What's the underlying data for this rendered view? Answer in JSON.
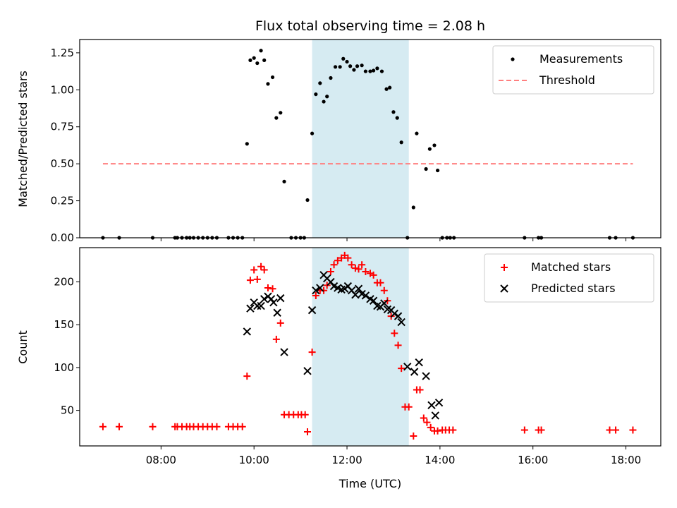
{
  "chart_data": {
    "title": "Flux total observing time = 2.08 h",
    "xlabel": "Time (UTC)",
    "x_unit": "hours UTC",
    "xlim": [
      6.25,
      18.75
    ],
    "x_ticks": [
      8,
      10,
      12,
      14,
      16,
      18
    ],
    "x_tick_labels": [
      "08:00",
      "10:00",
      "12:00",
      "14:00",
      "16:00",
      "18:00"
    ],
    "shaded_region": {
      "x_start": 11.25,
      "x_end": 13.33,
      "color": "#add8e6"
    },
    "panels": [
      {
        "type": "scatter",
        "ylabel": "Matched/Predicted stars",
        "ylim": [
          0,
          1.34
        ],
        "y_ticks": [
          0,
          0.25,
          0.5,
          0.75,
          1.0,
          1.25
        ],
        "y_tick_labels": [
          "0.00",
          "0.25",
          "0.50",
          "0.75",
          "1.00",
          "1.25"
        ],
        "legend": {
          "placement": "top-right"
        },
        "series": [
          {
            "name": "Measurements",
            "marker": "dot",
            "color": "#000000",
            "points": [
              [
                6.75,
                0
              ],
              [
                7.1,
                0
              ],
              [
                7.82,
                0
              ],
              [
                8.3,
                0
              ],
              [
                8.35,
                0
              ],
              [
                8.45,
                0
              ],
              [
                8.55,
                0
              ],
              [
                8.62,
                0
              ],
              [
                8.7,
                0
              ],
              [
                8.8,
                0
              ],
              [
                8.9,
                0
              ],
              [
                9.0,
                0
              ],
              [
                9.1,
                0
              ],
              [
                9.2,
                0
              ],
              [
                9.45,
                0
              ],
              [
                9.55,
                0
              ],
              [
                9.65,
                0
              ],
              [
                9.75,
                0
              ],
              [
                9.85,
                0.635
              ],
              [
                9.92,
                1.2
              ],
              [
                10.0,
                1.215
              ],
              [
                10.07,
                1.18
              ],
              [
                10.15,
                1.265
              ],
              [
                10.22,
                1.2
              ],
              [
                10.3,
                1.04
              ],
              [
                10.4,
                1.085
              ],
              [
                10.48,
                0.81
              ],
              [
                10.57,
                0.845
              ],
              [
                10.65,
                0.38
              ],
              [
                10.8,
                0
              ],
              [
                10.9,
                0
              ],
              [
                11.0,
                0
              ],
              [
                11.08,
                0
              ],
              [
                11.15,
                0.255
              ],
              [
                11.25,
                0.705
              ],
              [
                11.33,
                0.97
              ],
              [
                11.42,
                1.045
              ],
              [
                11.5,
                0.92
              ],
              [
                11.57,
                0.955
              ],
              [
                11.65,
                1.08
              ],
              [
                11.75,
                1.155
              ],
              [
                11.85,
                1.155
              ],
              [
                11.92,
                1.21
              ],
              [
                12.0,
                1.19
              ],
              [
                12.07,
                1.16
              ],
              [
                12.15,
                1.135
              ],
              [
                12.22,
                1.16
              ],
              [
                12.32,
                1.165
              ],
              [
                12.4,
                1.125
              ],
              [
                12.5,
                1.125
              ],
              [
                12.57,
                1.13
              ],
              [
                12.65,
                1.145
              ],
              [
                12.75,
                1.125
              ],
              [
                12.85,
                1.005
              ],
              [
                12.92,
                1.015
              ],
              [
                13.0,
                0.85
              ],
              [
                13.08,
                0.81
              ],
              [
                13.17,
                0.645
              ],
              [
                13.3,
                0
              ],
              [
                13.43,
                0.205
              ],
              [
                13.5,
                0.705
              ],
              [
                13.7,
                0.465
              ],
              [
                13.78,
                0.6
              ],
              [
                13.88,
                0.625
              ],
              [
                13.95,
                0.455
              ],
              [
                14.05,
                0
              ],
              [
                14.15,
                0
              ],
              [
                14.22,
                0
              ],
              [
                14.3,
                0
              ],
              [
                15.82,
                0
              ],
              [
                16.12,
                0
              ],
              [
                16.18,
                0
              ],
              [
                17.65,
                0
              ],
              [
                17.78,
                0
              ],
              [
                18.15,
                0
              ]
            ]
          },
          {
            "name": "Threshold",
            "marker": "dashed-line",
            "color": "#ff7f7f",
            "points": [
              [
                6.75,
                0.5
              ],
              [
                18.15,
                0.5
              ]
            ]
          }
        ]
      },
      {
        "type": "scatter",
        "ylabel": "Count",
        "ylim": [
          8.5,
          240
        ],
        "y_ticks": [
          50,
          100,
          150,
          200
        ],
        "y_tick_labels": [
          "50",
          "100",
          "150",
          "200"
        ],
        "legend": {
          "placement": "top-right"
        },
        "series": [
          {
            "name": "Matched stars",
            "marker": "plus",
            "color": "#ff0000",
            "points": [
              [
                6.75,
                31
              ],
              [
                7.1,
                31
              ],
              [
                7.82,
                31
              ],
              [
                8.3,
                31
              ],
              [
                8.35,
                31
              ],
              [
                8.45,
                31
              ],
              [
                8.55,
                31
              ],
              [
                8.62,
                31
              ],
              [
                8.7,
                31
              ],
              [
                8.8,
                31
              ],
              [
                8.9,
                31
              ],
              [
                9.0,
                31
              ],
              [
                9.1,
                31
              ],
              [
                9.2,
                31
              ],
              [
                9.45,
                31
              ],
              [
                9.55,
                31
              ],
              [
                9.65,
                31
              ],
              [
                9.75,
                31
              ],
              [
                9.85,
                90
              ],
              [
                9.92,
                202
              ],
              [
                10.0,
                214
              ],
              [
                10.07,
                203
              ],
              [
                10.15,
                218
              ],
              [
                10.22,
                214
              ],
              [
                10.3,
                193
              ],
              [
                10.4,
                192
              ],
              [
                10.48,
                133
              ],
              [
                10.57,
                152
              ],
              [
                10.65,
                45
              ],
              [
                10.75,
                45
              ],
              [
                10.85,
                45
              ],
              [
                10.95,
                45
              ],
              [
                11.02,
                45
              ],
              [
                11.1,
                45
              ],
              [
                11.15,
                25
              ],
              [
                11.25,
                118
              ],
              [
                11.33,
                184
              ],
              [
                11.42,
                190
              ],
              [
                11.5,
                190
              ],
              [
                11.57,
                196
              ],
              [
                11.65,
                212
              ],
              [
                11.72,
                220
              ],
              [
                11.8,
                225
              ],
              [
                11.88,
                228
              ],
              [
                11.95,
                231
              ],
              [
                12.02,
                228
              ],
              [
                12.1,
                220
              ],
              [
                12.18,
                216
              ],
              [
                12.25,
                215
              ],
              [
                12.32,
                220
              ],
              [
                12.4,
                212
              ],
              [
                12.5,
                210
              ],
              [
                12.57,
                208
              ],
              [
                12.65,
                199
              ],
              [
                12.72,
                199
              ],
              [
                12.8,
                190
              ],
              [
                12.87,
                178
              ],
              [
                12.95,
                160
              ],
              [
                13.02,
                140
              ],
              [
                13.1,
                126
              ],
              [
                13.17,
                99
              ],
              [
                13.25,
                54
              ],
              [
                13.33,
                54
              ],
              [
                13.43,
                20
              ],
              [
                13.5,
                74
              ],
              [
                13.57,
                74
              ],
              [
                13.65,
                41
              ],
              [
                13.72,
                36
              ],
              [
                13.8,
                30
              ],
              [
                13.88,
                26
              ],
              [
                13.95,
                26
              ],
              [
                14.05,
                27
              ],
              [
                14.12,
                27
              ],
              [
                14.2,
                27
              ],
              [
                14.28,
                27
              ],
              [
                15.82,
                27
              ],
              [
                16.12,
                27
              ],
              [
                16.18,
                27
              ],
              [
                17.65,
                27
              ],
              [
                17.78,
                27
              ],
              [
                18.15,
                27
              ]
            ]
          },
          {
            "name": "Predicted stars",
            "marker": "x",
            "color": "#000000",
            "points": [
              [
                9.85,
                142
              ],
              [
                9.92,
                169
              ],
              [
                10.0,
                176
              ],
              [
                10.07,
                172
              ],
              [
                10.15,
                172
              ],
              [
                10.22,
                180
              ],
              [
                10.3,
                183
              ],
              [
                10.37,
                180
              ],
              [
                10.42,
                176
              ],
              [
                10.5,
                164
              ],
              [
                10.57,
                181
              ],
              [
                10.65,
                118
              ],
              [
                11.15,
                96
              ],
              [
                11.25,
                167
              ],
              [
                11.33,
                190
              ],
              [
                11.42,
                193
              ],
              [
                11.5,
                208
              ],
              [
                11.57,
                204
              ],
              [
                11.65,
                200
              ],
              [
                11.72,
                195
              ],
              [
                11.8,
                193
              ],
              [
                11.88,
                191
              ],
              [
                11.95,
                192
              ],
              [
                12.02,
                195
              ],
              [
                12.1,
                190
              ],
              [
                12.18,
                185
              ],
              [
                12.25,
                192
              ],
              [
                12.32,
                186
              ],
              [
                12.4,
                184
              ],
              [
                12.5,
                180
              ],
              [
                12.57,
                178
              ],
              [
                12.65,
                172
              ],
              [
                12.72,
                171
              ],
              [
                12.8,
                175
              ],
              [
                12.87,
                168
              ],
              [
                12.95,
                167
              ],
              [
                13.02,
                163
              ],
              [
                13.1,
                160
              ],
              [
                13.17,
                153
              ],
              [
                13.3,
                101
              ],
              [
                13.45,
                95
              ],
              [
                13.55,
                106
              ],
              [
                13.7,
                90
              ],
              [
                13.82,
                56
              ],
              [
                13.9,
                44
              ],
              [
                13.98,
                59
              ]
            ]
          }
        ]
      }
    ]
  }
}
